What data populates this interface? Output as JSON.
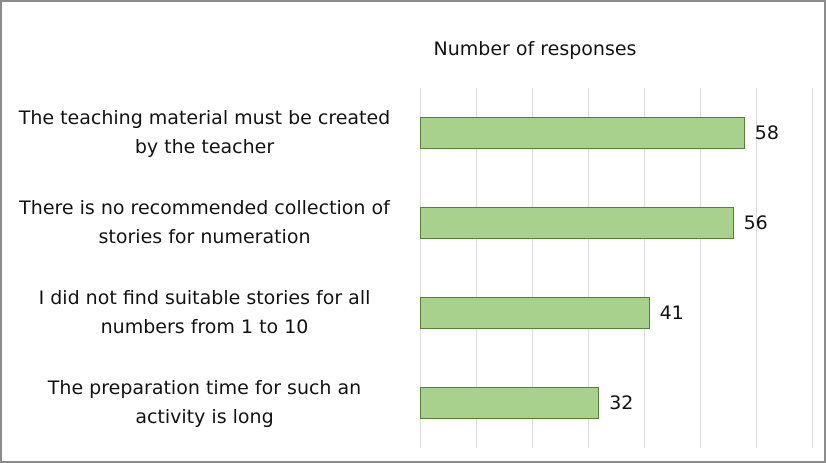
{
  "chart_data": {
    "type": "bar",
    "orientation": "horizontal",
    "title": "Number of responses",
    "categories": [
      "The teaching material must be created by the teacher",
      "There is no recommended collection of stories for numeration",
      "I did not find suitable stories for all numbers from 1 to 10",
      "The preparation time for such an activity is long"
    ],
    "values": [
      58,
      56,
      41,
      32
    ],
    "color": "#a9d18e",
    "edge_color": "#548235",
    "xlim": [
      0,
      70
    ],
    "xticks": [
      0,
      10,
      20,
      30,
      40,
      50,
      60,
      70
    ],
    "grid": true
  }
}
